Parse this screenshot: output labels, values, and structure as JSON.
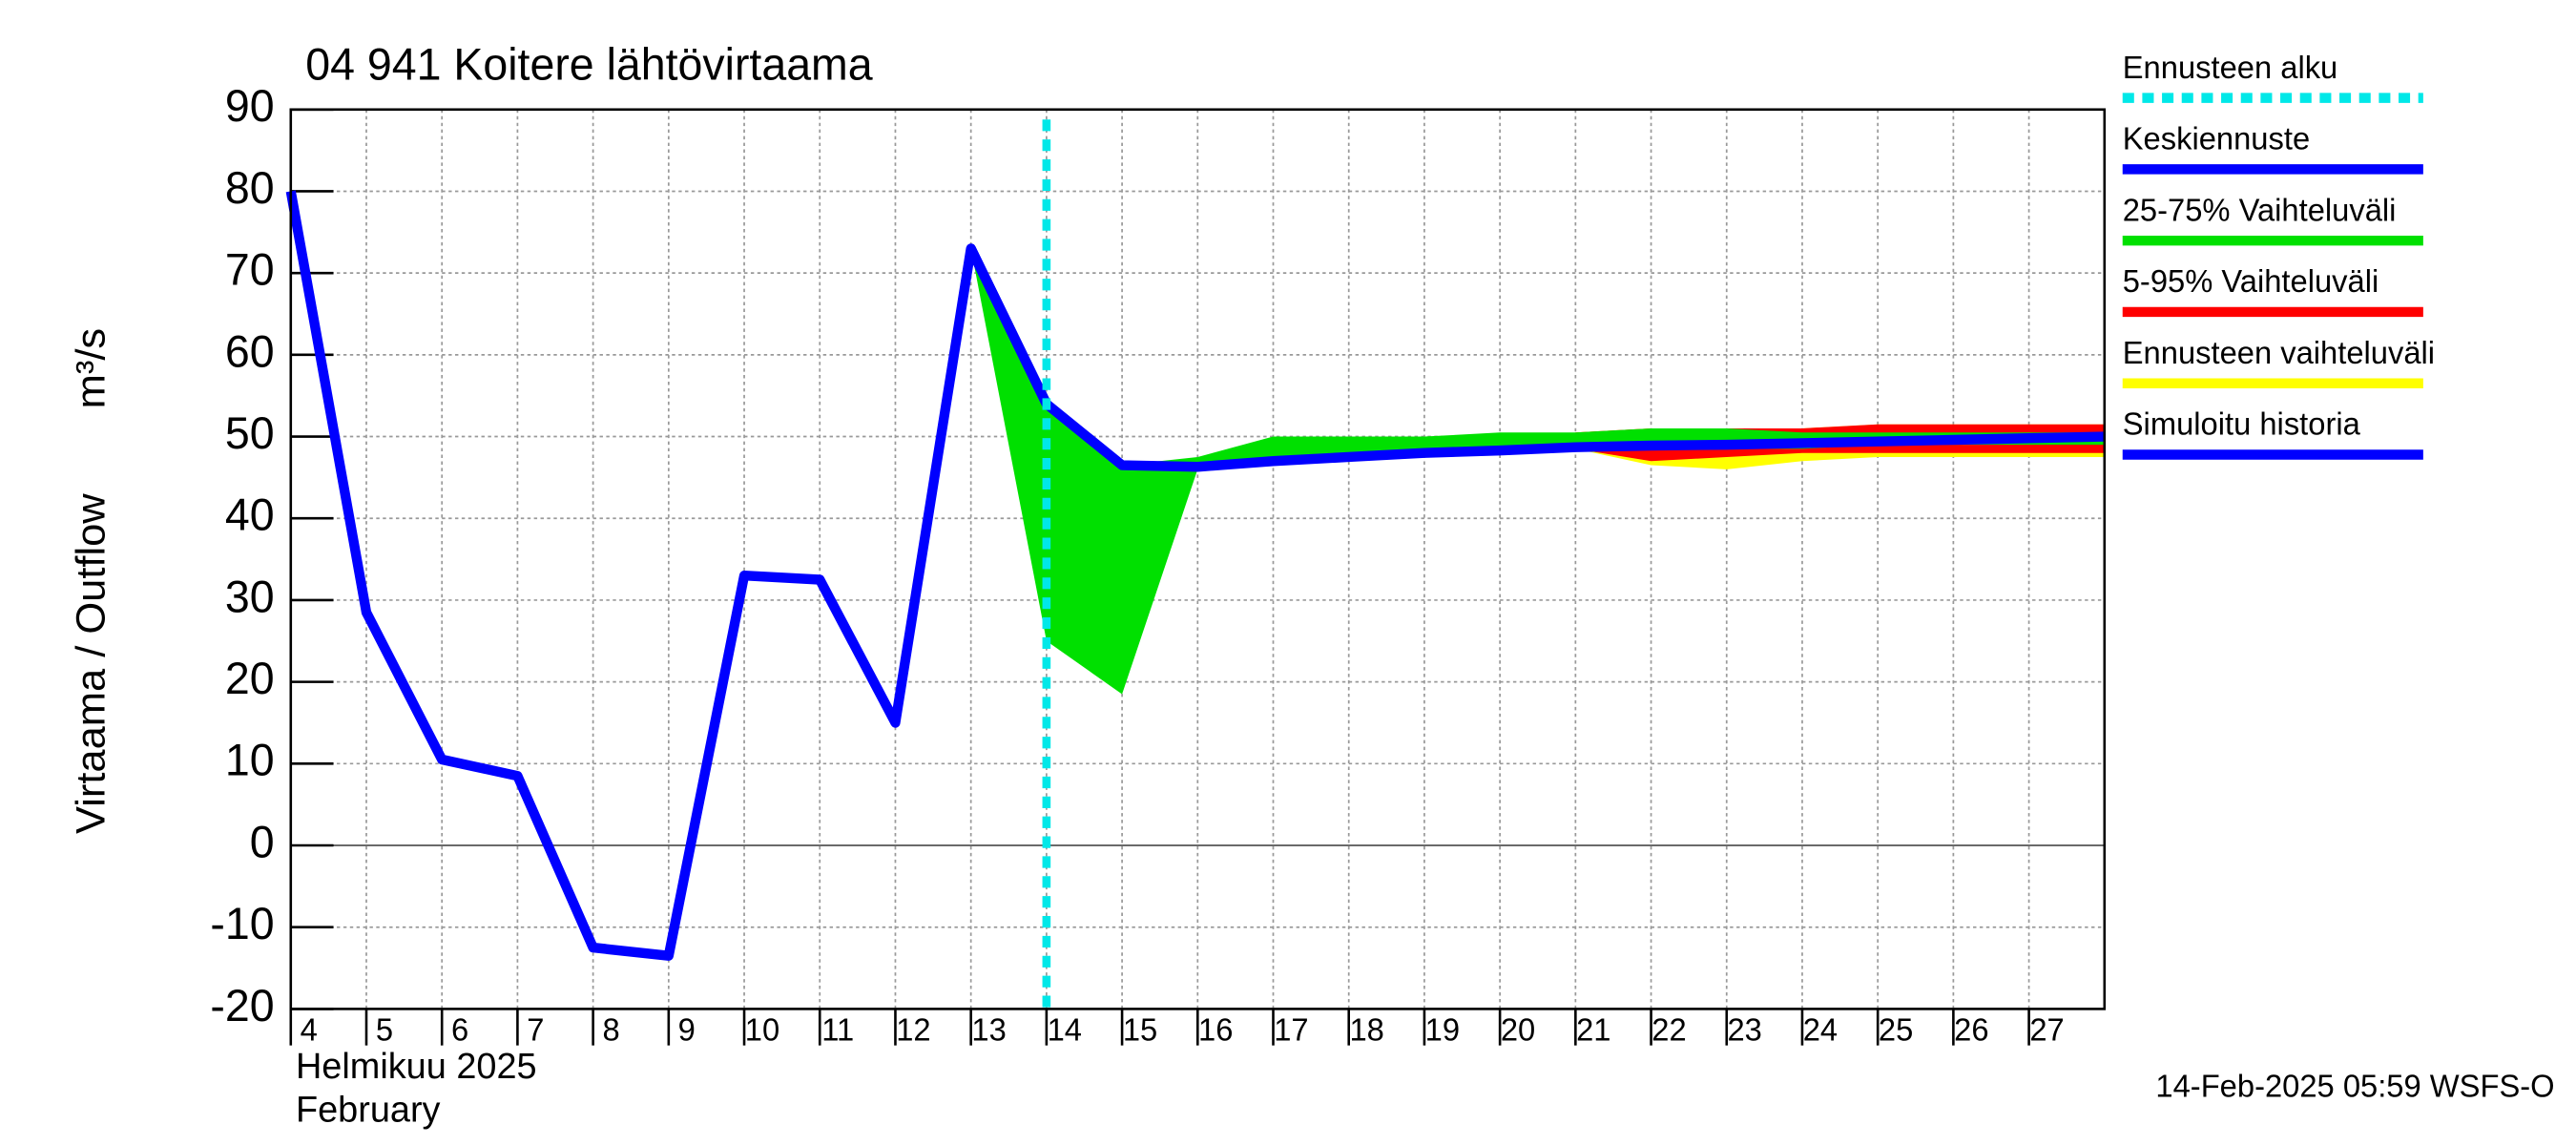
{
  "chart_data": {
    "type": "line",
    "title": "04 941 Koitere lähtövirtaama",
    "ylabel": "Virtaama / Outflow",
    "yunit": "m³/s",
    "xlabel_month": "Helmikuu  2025",
    "xlabel_month_en": "February",
    "footer": "14-Feb-2025 05:59 WSFS-O",
    "xlim": [
      4,
      28
    ],
    "xticks": [
      4,
      5,
      6,
      7,
      8,
      9,
      10,
      11,
      12,
      13,
      14,
      15,
      16,
      17,
      18,
      19,
      20,
      21,
      22,
      23,
      24,
      25,
      26,
      27
    ],
    "ylim": [
      -20,
      90
    ],
    "yticks": [
      -20,
      -10,
      0,
      10,
      20,
      30,
      40,
      50,
      60,
      70,
      80,
      90
    ],
    "grid": true,
    "forecast_start": {
      "name": "Ennusteen alku",
      "x": 14,
      "color": "#00e8e8"
    },
    "bands": [
      {
        "name": "Ennusteen vaihteluväli",
        "color": "#ffff00",
        "x": [
          21,
          22,
          23,
          24,
          25,
          26,
          27,
          28
        ],
        "lower": [
          48.5,
          46.5,
          46,
          47,
          47.5,
          47.5,
          47.5,
          47.5
        ],
        "upper": [
          50.5,
          51,
          51,
          51,
          51.5,
          51.5,
          51.5,
          51.5
        ]
      },
      {
        "name": "5-95% Vaihteluväli",
        "color": "#ff0000",
        "x": [
          21,
          22,
          23,
          24,
          25,
          26,
          27,
          28
        ],
        "lower": [
          48.5,
          47,
          47.5,
          48,
          48,
          48,
          48,
          48
        ],
        "upper": [
          50.5,
          51,
          51,
          51,
          51.5,
          51.5,
          51.5,
          51.5
        ]
      },
      {
        "name": "25-75% Vaihteluväli",
        "color": "#00e000",
        "x": [
          13,
          14,
          15,
          16,
          17,
          18,
          19,
          20,
          21,
          22,
          23,
          24,
          25,
          26,
          27,
          28
        ],
        "lower": [
          73,
          25,
          18.5,
          46,
          46.5,
          47,
          47.5,
          48,
          48.5,
          48.5,
          48.5,
          48.5,
          49,
          49,
          49,
          49
        ],
        "upper": [
          73,
          54,
          46.5,
          47.5,
          50,
          50,
          50,
          50.5,
          50.5,
          51,
          51,
          50.5,
          50.5,
          50.5,
          50.5,
          50.5
        ]
      }
    ],
    "series": [
      {
        "name": "Simuloitu historia",
        "color": "#0000ff",
        "x": [
          4,
          5,
          6,
          7,
          8,
          9,
          10,
          11,
          12,
          13,
          14
        ],
        "values": [
          80,
          28.5,
          10.5,
          8.5,
          -12.5,
          -13.5,
          33,
          32.5,
          15,
          73,
          54
        ]
      },
      {
        "name": "Keskiennuste",
        "color": "#0000ff",
        "x": [
          13,
          14,
          15,
          16,
          17,
          18,
          19,
          20,
          21,
          22,
          23,
          24,
          25,
          26,
          27,
          28
        ],
        "values": [
          73,
          54,
          46.5,
          46.3,
          47,
          47.5,
          48,
          48.3,
          48.7,
          48.9,
          49,
          49.2,
          49.4,
          49.6,
          49.8,
          50
        ]
      }
    ]
  }
}
